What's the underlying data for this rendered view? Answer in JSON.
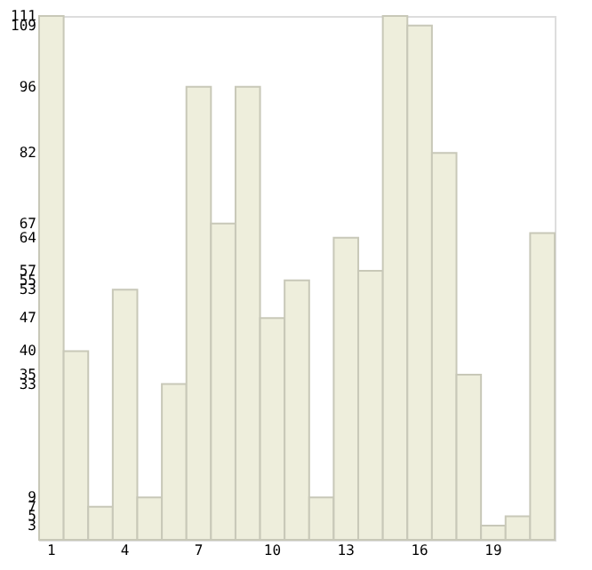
{
  "chart_data": {
    "type": "bar",
    "categories": [
      "1",
      null,
      null,
      "4",
      null,
      null,
      "7",
      null,
      null,
      "10",
      null,
      null,
      "13",
      null,
      null,
      "16",
      null,
      null,
      "19",
      null,
      null
    ],
    "values": [
      111,
      40,
      7,
      53,
      9,
      33,
      96,
      67,
      96,
      47,
      55,
      9,
      64,
      57,
      111,
      109,
      82,
      35,
      3,
      5,
      65
    ],
    "color": "#eeeedc",
    "ylim": [
      0,
      111
    ],
    "yticks": [
      3,
      5,
      7,
      9,
      33,
      35,
      40,
      47,
      53,
      55,
      57,
      64,
      67,
      82,
      96,
      109,
      111
    ],
    "grid": false
  }
}
